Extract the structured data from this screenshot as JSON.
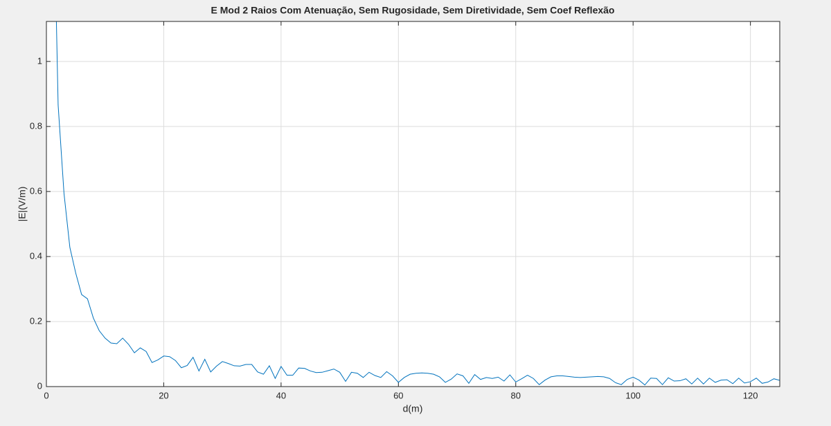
{
  "chart_data": {
    "type": "line",
    "title": "E Mod 2 Raios Com Atenuação, Sem Rugosidade, Sem Diretividade, Sem Coef Reflexão",
    "xlabel": "d(m)",
    "ylabel": "|E|(V/m)",
    "x": [
      1,
      2,
      3,
      4,
      5,
      6,
      7,
      8,
      9,
      10,
      11,
      12,
      13,
      14,
      15,
      16,
      17,
      18,
      19,
      20,
      21,
      22,
      23,
      24,
      25,
      26,
      27,
      28,
      29,
      30,
      31,
      32,
      33,
      34,
      35,
      36,
      37,
      38,
      39,
      40,
      41,
      42,
      43,
      44,
      45,
      46,
      47,
      48,
      49,
      50,
      51,
      52,
      53,
      54,
      55,
      56,
      57,
      58,
      59,
      60,
      61,
      62,
      63,
      64,
      65,
      66,
      67,
      68,
      69,
      70,
      71,
      72,
      73,
      74,
      75,
      76,
      77,
      78,
      79,
      80,
      81,
      82,
      83,
      84,
      85,
      86,
      87,
      88,
      89,
      90,
      91,
      92,
      93,
      94,
      95,
      96,
      97,
      98,
      99,
      100,
      101,
      102,
      103,
      104,
      105,
      106,
      107,
      108,
      109,
      110,
      111,
      112,
      113,
      114,
      115,
      116,
      117,
      118,
      119,
      120,
      121,
      122,
      123,
      124,
      125
    ],
    "series": [
      {
        "name": "E",
        "color": "#0072bd",
        "values": [
          1.73,
          0.866,
          0.594,
          0.428,
          0.349,
          0.283,
          0.27,
          0.211,
          0.172,
          0.149,
          0.134,
          0.132,
          0.149,
          0.13,
          0.104,
          0.119,
          0.108,
          0.074,
          0.082,
          0.094,
          0.092,
          0.08,
          0.058,
          0.065,
          0.09,
          0.048,
          0.084,
          0.045,
          0.063,
          0.077,
          0.071,
          0.064,
          0.063,
          0.068,
          0.068,
          0.045,
          0.038,
          0.064,
          0.025,
          0.062,
          0.035,
          0.035,
          0.057,
          0.056,
          0.048,
          0.043,
          0.044,
          0.049,
          0.054,
          0.044,
          0.016,
          0.044,
          0.041,
          0.028,
          0.044,
          0.034,
          0.028,
          0.046,
          0.033,
          0.013,
          0.028,
          0.038,
          0.041,
          0.042,
          0.041,
          0.038,
          0.03,
          0.013,
          0.023,
          0.039,
          0.033,
          0.01,
          0.037,
          0.022,
          0.028,
          0.025,
          0.029,
          0.017,
          0.036,
          0.014,
          0.024,
          0.035,
          0.025,
          0.006,
          0.02,
          0.03,
          0.033,
          0.033,
          0.031,
          0.029,
          0.028,
          0.029,
          0.03,
          0.031,
          0.03,
          0.025,
          0.012,
          0.006,
          0.022,
          0.029,
          0.02,
          0.005,
          0.026,
          0.025,
          0.006,
          0.027,
          0.017,
          0.018,
          0.024,
          0.008,
          0.026,
          0.008,
          0.026,
          0.013,
          0.02,
          0.021,
          0.009,
          0.026,
          0.011,
          0.015,
          0.026,
          0.01,
          0.014,
          0.024,
          0.019
        ]
      }
    ],
    "xlim": [
      0,
      125
    ],
    "ylim": [
      0,
      1.123
    ],
    "xticks": [
      0,
      20,
      40,
      60,
      80,
      100,
      120
    ],
    "yticks": [
      0,
      0.2,
      0.4,
      0.6,
      0.8,
      1
    ],
    "grid": true
  }
}
